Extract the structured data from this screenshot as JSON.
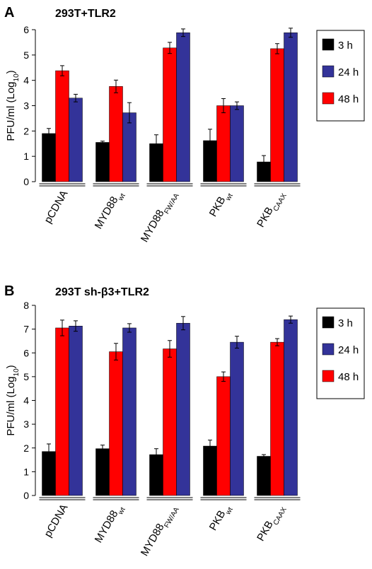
{
  "chart_data": [
    {
      "type": "bar",
      "panel": "A",
      "title": "293T+TLR2",
      "ylabel": {
        "text": "PFU/ml (Log",
        "sub": "10",
        "end": ")"
      },
      "categories": [
        "pCDNA",
        "MYD88",
        "MYD88",
        "PKB",
        "PKB"
      ],
      "category_subscripts": [
        null,
        "wt",
        "FW/AA",
        "wt",
        "CAAX"
      ],
      "series": [
        {
          "name": "3 h",
          "color": "#000000",
          "values": [
            1.9,
            1.55,
            1.5,
            1.62,
            0.78
          ],
          "errors": [
            0.2,
            0.05,
            0.35,
            0.45,
            0.25
          ]
        },
        {
          "name": "24 h",
          "color": "#333399",
          "values": [
            3.3,
            2.72,
            5.88,
            3.0,
            5.88
          ],
          "errors": [
            0.15,
            0.4,
            0.15,
            0.15,
            0.18
          ]
        },
        {
          "name": "48 h",
          "color": "#ff0000",
          "values": [
            4.38,
            3.76,
            5.28,
            3.0,
            5.25
          ],
          "errors": [
            0.2,
            0.25,
            0.22,
            0.28,
            0.2
          ]
        }
      ],
      "bar_order": [
        0,
        2,
        1
      ],
      "ylim": [
        0,
        6
      ],
      "yticks": [
        0,
        1,
        2,
        3,
        4,
        5,
        6
      ],
      "legend": "upper right"
    },
    {
      "type": "bar",
      "panel": "B",
      "title": "293T sh-β3+TLR2",
      "ylabel": {
        "text": "PFU/ml (Log",
        "sub": "10",
        "end": ")"
      },
      "categories": [
        "pCDNA",
        "MYD88",
        "MYD88",
        "PKB",
        "PKB"
      ],
      "category_subscripts": [
        null,
        "wt",
        "FW/AA",
        "wt",
        "CAAX"
      ],
      "series": [
        {
          "name": "3 h",
          "color": "#000000",
          "values": [
            1.85,
            1.97,
            1.72,
            2.08,
            1.65
          ],
          "errors": [
            0.32,
            0.15,
            0.25,
            0.25,
            0.07
          ]
        },
        {
          "name": "24 h",
          "color": "#333399",
          "values": [
            7.13,
            7.05,
            7.25,
            6.45,
            7.4
          ],
          "errors": [
            0.22,
            0.18,
            0.28,
            0.25,
            0.15
          ]
        },
        {
          "name": "48 h",
          "color": "#ff0000",
          "values": [
            7.05,
            6.05,
            6.17,
            5.0,
            6.45
          ],
          "errors": [
            0.33,
            0.35,
            0.35,
            0.2,
            0.15
          ]
        }
      ],
      "bar_order": [
        0,
        2,
        1
      ],
      "ylim": [
        0,
        8
      ],
      "yticks": [
        0,
        1,
        2,
        3,
        4,
        5,
        6,
        7,
        8
      ],
      "legend": "upper right"
    }
  ]
}
